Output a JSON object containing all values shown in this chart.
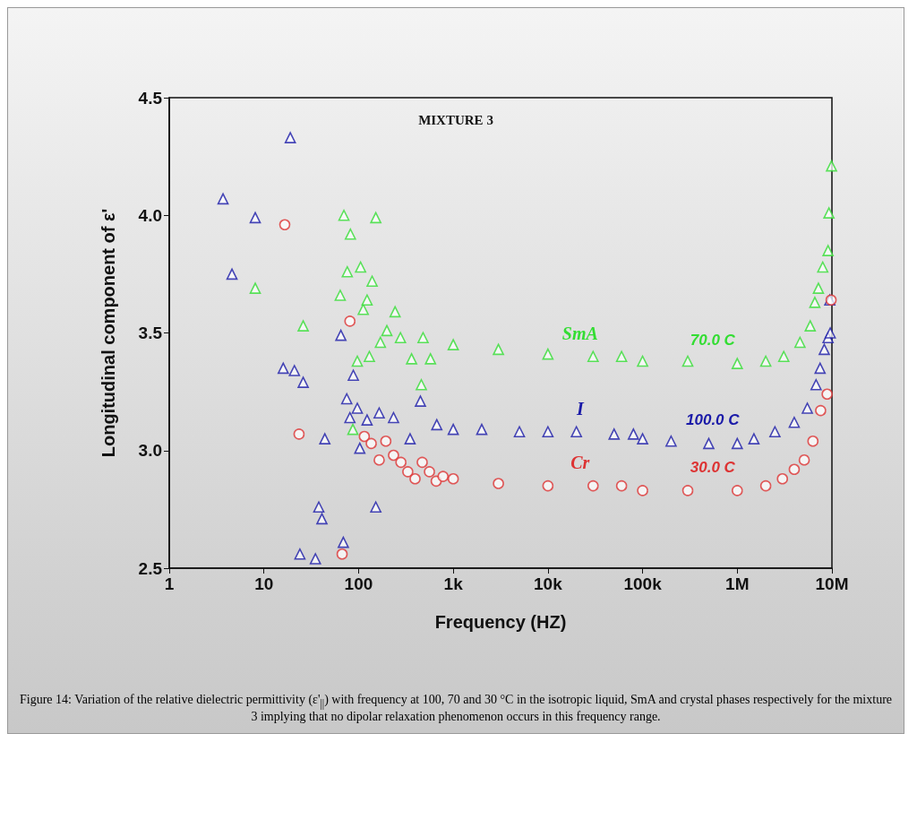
{
  "chart_data": {
    "type": "scatter",
    "title": "MIXTURE 3",
    "xlabel": "Frequency (HZ)",
    "ylabel": "Longitudinal component of ε'",
    "log": "x",
    "xlim": [
      1,
      10000000
    ],
    "xticks": [
      1,
      10,
      100,
      {
        "value": 1000,
        "label": "1k"
      },
      {
        "value": 10000,
        "label": "10k"
      },
      {
        "value": 100000,
        "label": "100k"
      },
      {
        "value": 1000000,
        "label": "1M"
      },
      {
        "value": 10000000,
        "label": "10M"
      }
    ],
    "ylim": [
      2.5,
      4.5
    ],
    "yticks": [
      2.5,
      {
        "value": 3,
        "label": "3.0"
      },
      3.5,
      {
        "value": 4,
        "label": "4.0"
      },
      4.5
    ],
    "grid": false,
    "legend": false,
    "series": [
      {
        "name": "SmA",
        "color": "#33dd33",
        "marker": "triangle",
        "x": [
          8.1,
          26,
          64,
          70,
          76,
          82,
          87,
          97,
          105,
          112,
          123,
          130,
          139,
          152,
          170,
          199,
          243,
          277,
          363,
          460,
          480,
          575,
          1000,
          3000,
          10000,
          30000,
          60000,
          100000,
          300000,
          1000000,
          2000000,
          3100000,
          4600000,
          5900000,
          6600000,
          7200000,
          8000000,
          9100000,
          9300000,
          9900000
        ],
        "values": [
          3.69,
          3.53,
          3.66,
          4.0,
          3.76,
          3.92,
          3.09,
          3.38,
          3.78,
          3.6,
          3.64,
          3.4,
          3.72,
          3.99,
          3.46,
          3.51,
          3.59,
          3.48,
          3.39,
          3.28,
          3.48,
          3.39,
          3.45,
          3.43,
          3.41,
          3.4,
          3.4,
          3.38,
          3.38,
          3.37,
          3.38,
          3.4,
          3.46,
          3.53,
          3.63,
          3.69,
          3.78,
          3.85,
          4.01,
          4.21
        ]
      },
      {
        "name": "I",
        "color": "#1a1aa8",
        "marker": "triangle",
        "x": [
          3.7,
          4.6,
          8.1,
          16,
          19,
          21,
          24,
          26,
          35,
          38,
          41,
          44,
          65,
          69,
          75,
          81,
          88,
          97,
          103,
          123,
          152,
          165,
          234,
          350,
          450,
          670,
          1000,
          2000,
          5000,
          10000,
          20000,
          50000,
          80000,
          100000,
          200000,
          500000,
          1000000,
          1500000,
          2500000,
          4000000,
          5500000,
          6800000,
          7500000,
          8300000,
          9100000,
          9500000,
          9600000
        ],
        "values": [
          4.07,
          3.75,
          3.99,
          3.35,
          4.33,
          3.34,
          2.56,
          3.29,
          2.54,
          2.76,
          2.71,
          3.05,
          3.49,
          2.61,
          3.22,
          3.14,
          3.32,
          3.18,
          3.01,
          3.13,
          2.76,
          3.16,
          3.14,
          3.05,
          3.21,
          3.11,
          3.09,
          3.09,
          3.08,
          3.08,
          3.08,
          3.07,
          3.07,
          3.05,
          3.04,
          3.03,
          3.03,
          3.05,
          3.08,
          3.12,
          3.18,
          3.28,
          3.35,
          3.43,
          3.48,
          3.64,
          3.5
        ]
      },
      {
        "name": "Cr",
        "color": "#dd3333",
        "marker": "circle",
        "x": [
          16.6,
          23.5,
          67,
          81,
          115,
          136,
          165,
          194,
          234,
          280,
          331,
          395,
          470,
          560,
          660,
          780,
          1000,
          3000,
          10000,
          30000,
          60000,
          100000,
          300000,
          1000000,
          2000000,
          3000000,
          4000000,
          5100000,
          6300000,
          7600000,
          8900000,
          9800000
        ],
        "values": [
          3.96,
          3.07,
          2.56,
          3.55,
          3.06,
          3.03,
          2.96,
          3.04,
          2.98,
          2.95,
          2.91,
          2.88,
          2.95,
          2.91,
          2.87,
          2.89,
          2.88,
          2.86,
          2.85,
          2.85,
          2.85,
          2.83,
          2.83,
          2.83,
          2.85,
          2.88,
          2.92,
          2.96,
          3.04,
          3.17,
          3.24,
          3.64
        ]
      }
    ],
    "annotations": [
      "70.0 C",
      "100.0 C",
      "30.0 C",
      "Figure 14: Variation of the relative dielectric permittivity (ε'$_{||}$) with frequency at 100, 70 and 30 °C in the isotropic liquid, SmA and crystal phases respectively for the mixture 3  implying that no dipolar relaxation phenomenon occurs in this frequency range."
    ]
  }
}
